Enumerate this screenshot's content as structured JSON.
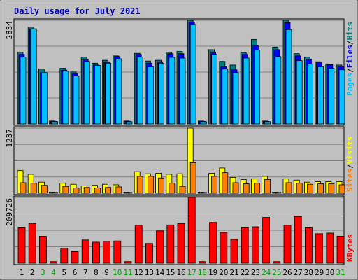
{
  "title": "Daily usage for July 2021",
  "colors": {
    "background": "#c0c0c0",
    "grid": "#808080",
    "title_text": "#0000c0",
    "hits": "#008080",
    "files": "#0000ff",
    "pages": "#00c0ff",
    "visits": "#ffff00",
    "sites": "#ff8000",
    "kbytes": "#ff0000",
    "weekend_label": "#00a000"
  },
  "panels": {
    "hits_files_pages": {
      "max_label": "2834",
      "legend": {
        "pages": "Pages",
        "files": "Files",
        "hits": "Hits",
        "sep": "/"
      }
    },
    "visits_sites": {
      "max_label": "1237",
      "legend": {
        "sites": "Sites",
        "visits": "Visits",
        "sep": "/"
      }
    },
    "kbytes": {
      "max_label": "209726",
      "legend": {
        "kbytes": "KBytes"
      }
    }
  },
  "chart_data": {
    "type": "bar",
    "title": "Daily usage for July 2021",
    "categories": [
      "1",
      "2",
      "3",
      "4",
      "5",
      "6",
      "7",
      "8",
      "9",
      "10",
      "11",
      "12",
      "13",
      "14",
      "15",
      "16",
      "17",
      "18",
      "19",
      "20",
      "21",
      "22",
      "23",
      "24",
      "25",
      "26",
      "27",
      "28",
      "29",
      "30",
      "31"
    ],
    "weekend_days": [
      "3",
      "4",
      "10",
      "11",
      "17",
      "18",
      "24",
      "25",
      "31"
    ],
    "series": [
      {
        "name": "Hits",
        "panel": "hits_files_pages",
        "values": [
          1960,
          2650,
          1500,
          80,
          1520,
          1420,
          1830,
          1660,
          1740,
          1860,
          80,
          1930,
          1720,
          1740,
          1960,
          1980,
          2834,
          80,
          2030,
          1710,
          1610,
          1950,
          2310,
          80,
          2100,
          2834,
          1920,
          1830,
          1700,
          1640,
          1610
        ]
      },
      {
        "name": "Files",
        "panel": "hits_files_pages",
        "values": [
          1900,
          2600,
          1400,
          70,
          1470,
          1370,
          1760,
          1610,
          1700,
          1840,
          70,
          1900,
          1660,
          1700,
          1920,
          1920,
          2790,
          70,
          1960,
          1560,
          1480,
          1900,
          2140,
          70,
          2030,
          2770,
          1860,
          1770,
          1690,
          1620,
          1580
        ]
      },
      {
        "name": "Pages",
        "panel": "hits_files_pages",
        "values": [
          1830,
          2600,
          1400,
          60,
          1440,
          1310,
          1710,
          1600,
          1660,
          1780,
          60,
          1830,
          1560,
          1660,
          1820,
          1800,
          2720,
          60,
          1900,
          1500,
          1400,
          1800,
          2020,
          60,
          1840,
          2580,
          1730,
          1640,
          1560,
          1520,
          1480
        ]
      },
      {
        "name": "Visits",
        "panel": "visits_sites",
        "values": [
          430,
          360,
          210,
          20,
          190,
          170,
          140,
          150,
          170,
          160,
          20,
          410,
          370,
          380,
          360,
          370,
          1237,
          20,
          380,
          480,
          300,
          260,
          270,
          320,
          20,
          270,
          250,
          210,
          220,
          220,
          220
        ]
      },
      {
        "name": "Sites",
        "panel": "visits_sites",
        "values": [
          200,
          190,
          150,
          15,
          130,
          100,
          110,
          100,
          110,
          120,
          15,
          320,
          320,
          290,
          190,
          130,
          580,
          15,
          320,
          390,
          200,
          180,
          190,
          260,
          15,
          200,
          190,
          170,
          180,
          180,
          160
        ]
      },
      {
        "name": "KBytes",
        "panel": "kbytes",
        "values": [
          115000,
          127000,
          86000,
          5000,
          48000,
          37000,
          74000,
          67000,
          70000,
          71000,
          5000,
          121000,
          63000,
          103000,
          122000,
          126000,
          209726,
          5000,
          130000,
          98000,
          76000,
          115000,
          116000,
          146000,
          5000,
          121000,
          149000,
          115000,
          94000,
          96000,
          86000
        ]
      }
    ],
    "ylim": {
      "hits_files_pages": [
        0,
        2834
      ],
      "visits_sites": [
        0,
        1237
      ],
      "kbytes": [
        0,
        209726
      ]
    },
    "grid": true
  }
}
